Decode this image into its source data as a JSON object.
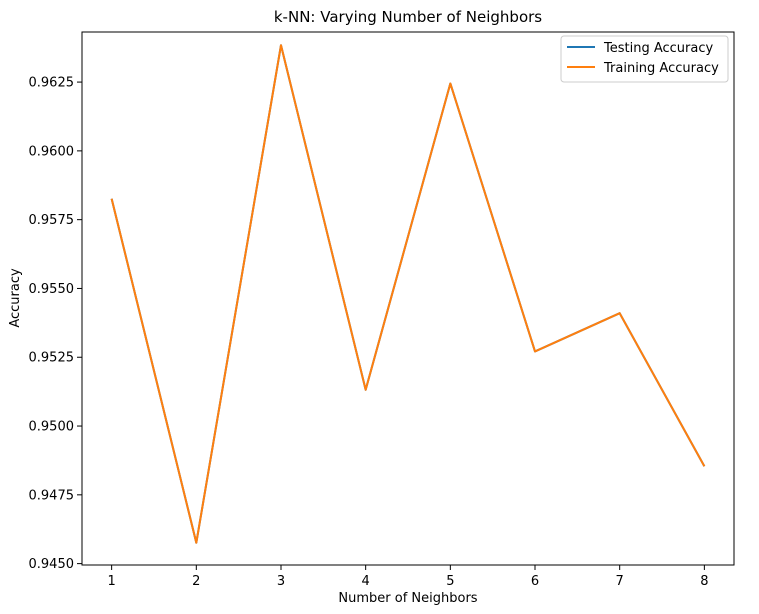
{
  "chart_data": {
    "type": "line",
    "title": "k-NN: Varying Number of Neighbors",
    "xlabel": "Number of Neighbors",
    "ylabel": "Accuracy",
    "x": [
      1,
      2,
      3,
      4,
      5,
      6,
      7,
      8
    ],
    "xticks": [
      "1",
      "2",
      "3",
      "4",
      "5",
      "6",
      "7",
      "8"
    ],
    "yticks": [
      "0.9450",
      "0.9475",
      "0.9500",
      "0.9525",
      "0.9550",
      "0.9575",
      "0.9600",
      "0.9625"
    ],
    "ytick_values": [
      0.945,
      0.9475,
      0.95,
      0.9525,
      0.955,
      0.9575,
      0.96,
      0.9625
    ],
    "xlim": [
      0.65,
      8.35
    ],
    "ylim": [
      0.94495,
      0.96432
    ],
    "grid": false,
    "legend_position": "top-right",
    "series": [
      {
        "name": "Testing Accuracy",
        "color": "#1f77b4",
        "values": [
          0.95826,
          0.94576,
          0.96384,
          0.95132,
          0.96245,
          0.95271,
          0.9541,
          0.94854
        ]
      },
      {
        "name": "Training Accuracy",
        "color": "#ff7f0e",
        "values": [
          0.95826,
          0.94576,
          0.96384,
          0.95132,
          0.96245,
          0.95271,
          0.9541,
          0.94854
        ]
      }
    ]
  }
}
